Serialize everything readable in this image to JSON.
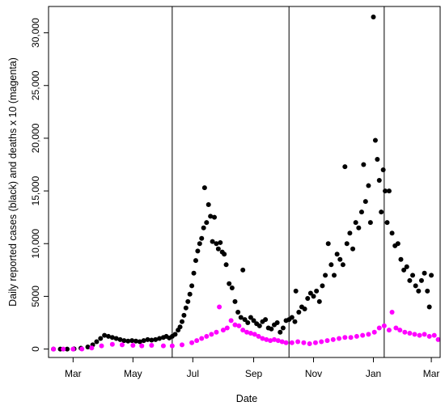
{
  "chart_data": {
    "type": "scatter",
    "xlabel": "Date",
    "ylabel": "Daily reported cases (black) and deaths x 10 (magenta)",
    "xlim": [
      "2020-02-05",
      "2021-03-10"
    ],
    "ylim": [
      -800,
      32500
    ],
    "x_ticks": [
      {
        "date": "2020-03-01",
        "label": "Mar"
      },
      {
        "date": "2020-05-01",
        "label": "May"
      },
      {
        "date": "2020-07-01",
        "label": "Jul"
      },
      {
        "date": "2020-09-01",
        "label": "Sep"
      },
      {
        "date": "2020-11-01",
        "label": "Nov"
      },
      {
        "date": "2021-01-01",
        "label": "Jan"
      },
      {
        "date": "2021-03-01",
        "label": "Mar"
      }
    ],
    "y_ticks": [
      {
        "value": 0,
        "label": "0"
      },
      {
        "value": 5000,
        "label": "5000"
      },
      {
        "value": 10000,
        "label": "10,000"
      },
      {
        "value": 15000,
        "label": "15,000"
      },
      {
        "value": 20000,
        "label": "20,000"
      },
      {
        "value": 25000,
        "label": "25,000"
      },
      {
        "value": 30000,
        "label": "30,000"
      }
    ],
    "vertical_lines": [
      "2020-06-10",
      "2020-10-07",
      "2021-01-12"
    ],
    "grid": false,
    "series": [
      {
        "color": "#000000",
        "points": [
          [
            "2020-02-10",
            0
          ],
          [
            "2020-02-17",
            0
          ],
          [
            "2020-02-24",
            0
          ],
          [
            "2020-03-02",
            20
          ],
          [
            "2020-03-09",
            80
          ],
          [
            "2020-03-16",
            200
          ],
          [
            "2020-03-21",
            400
          ],
          [
            "2020-03-25",
            700
          ],
          [
            "2020-03-29",
            1000
          ],
          [
            "2020-04-02",
            1300
          ],
          [
            "2020-04-06",
            1200
          ],
          [
            "2020-04-10",
            1100
          ],
          [
            "2020-04-14",
            1000
          ],
          [
            "2020-04-18",
            900
          ],
          [
            "2020-04-22",
            800
          ],
          [
            "2020-04-26",
            750
          ],
          [
            "2020-04-30",
            800
          ],
          [
            "2020-05-04",
            750
          ],
          [
            "2020-05-08",
            700
          ],
          [
            "2020-05-12",
            800
          ],
          [
            "2020-05-16",
            900
          ],
          [
            "2020-05-20",
            850
          ],
          [
            "2020-05-24",
            900
          ],
          [
            "2020-05-28",
            1000
          ],
          [
            "2020-06-01",
            1100
          ],
          [
            "2020-06-04",
            1200
          ],
          [
            "2020-06-07",
            1050
          ],
          [
            "2020-06-10",
            1200
          ],
          [
            "2020-06-13",
            1400
          ],
          [
            "2020-06-16",
            1800
          ],
          [
            "2020-06-18",
            2100
          ],
          [
            "2020-06-20",
            2600
          ],
          [
            "2020-06-22",
            3200
          ],
          [
            "2020-06-24",
            3900
          ],
          [
            "2020-06-26",
            4500
          ],
          [
            "2020-06-28",
            5200
          ],
          [
            "2020-06-30",
            6000
          ],
          [
            "2020-07-02",
            7200
          ],
          [
            "2020-07-04",
            8400
          ],
          [
            "2020-07-06",
            9300
          ],
          [
            "2020-07-08",
            10000
          ],
          [
            "2020-07-10",
            10500
          ],
          [
            "2020-07-12",
            11500
          ],
          [
            "2020-07-13",
            15300
          ],
          [
            "2020-07-15",
            12000
          ],
          [
            "2020-07-17",
            13700
          ],
          [
            "2020-07-19",
            12600
          ],
          [
            "2020-07-21",
            10200
          ],
          [
            "2020-07-23",
            12500
          ],
          [
            "2020-07-25",
            10000
          ],
          [
            "2020-07-27",
            9500
          ],
          [
            "2020-07-29",
            10100
          ],
          [
            "2020-07-31",
            9200
          ],
          [
            "2020-08-02",
            9000
          ],
          [
            "2020-08-04",
            8000
          ],
          [
            "2020-08-07",
            6200
          ],
          [
            "2020-08-10",
            5800
          ],
          [
            "2020-08-13",
            4500
          ],
          [
            "2020-08-16",
            3500
          ],
          [
            "2020-08-19",
            3000
          ],
          [
            "2020-08-21",
            7500
          ],
          [
            "2020-08-23",
            2800
          ],
          [
            "2020-08-26",
            2500
          ],
          [
            "2020-08-29",
            3000
          ],
          [
            "2020-09-01",
            2700
          ],
          [
            "2020-09-04",
            2400
          ],
          [
            "2020-09-07",
            2200
          ],
          [
            "2020-09-10",
            2600
          ],
          [
            "2020-09-13",
            2800
          ],
          [
            "2020-09-16",
            2000
          ],
          [
            "2020-09-19",
            1900
          ],
          [
            "2020-09-22",
            2300
          ],
          [
            "2020-09-25",
            2500
          ],
          [
            "2020-09-28",
            1600
          ],
          [
            "2020-10-01",
            2000
          ],
          [
            "2020-10-04",
            2700
          ],
          [
            "2020-10-07",
            2800
          ],
          [
            "2020-10-10",
            3000
          ],
          [
            "2020-10-13",
            2600
          ],
          [
            "2020-10-14",
            5500
          ],
          [
            "2020-10-17",
            3500
          ],
          [
            "2020-10-20",
            4000
          ],
          [
            "2020-10-23",
            3800
          ],
          [
            "2020-10-26",
            4800
          ],
          [
            "2020-10-29",
            5300
          ],
          [
            "2020-11-01",
            5000
          ],
          [
            "2020-11-04",
            5500
          ],
          [
            "2020-11-07",
            4500
          ],
          [
            "2020-11-10",
            6000
          ],
          [
            "2020-11-13",
            7000
          ],
          [
            "2020-11-16",
            10000
          ],
          [
            "2020-11-19",
            8000
          ],
          [
            "2020-11-22",
            7000
          ],
          [
            "2020-11-25",
            9000
          ],
          [
            "2020-11-28",
            8500
          ],
          [
            "2020-12-01",
            8000
          ],
          [
            "2020-12-03",
            17300
          ],
          [
            "2020-12-05",
            10000
          ],
          [
            "2020-12-08",
            11000
          ],
          [
            "2020-12-11",
            9500
          ],
          [
            "2020-12-14",
            12000
          ],
          [
            "2020-12-17",
            11500
          ],
          [
            "2020-12-20",
            13000
          ],
          [
            "2020-12-22",
            17500
          ],
          [
            "2020-12-24",
            14000
          ],
          [
            "2020-12-27",
            15500
          ],
          [
            "2020-12-29",
            12000
          ],
          [
            "2021-01-01",
            31500
          ],
          [
            "2021-01-03",
            19800
          ],
          [
            "2021-01-05",
            18000
          ],
          [
            "2021-01-07",
            16000
          ],
          [
            "2021-01-09",
            13000
          ],
          [
            "2021-01-11",
            17000
          ],
          [
            "2021-01-13",
            15000
          ],
          [
            "2021-01-15",
            12000
          ],
          [
            "2021-01-17",
            15000
          ],
          [
            "2021-01-20",
            11000
          ],
          [
            "2021-01-23",
            9800
          ],
          [
            "2021-01-26",
            10000
          ],
          [
            "2021-01-29",
            8500
          ],
          [
            "2021-02-01",
            7500
          ],
          [
            "2021-02-04",
            7800
          ],
          [
            "2021-02-07",
            6500
          ],
          [
            "2021-02-10",
            7000
          ],
          [
            "2021-02-13",
            6000
          ],
          [
            "2021-02-16",
            5500
          ],
          [
            "2021-02-19",
            6500
          ],
          [
            "2021-02-22",
            7200
          ],
          [
            "2021-02-25",
            5500
          ],
          [
            "2021-02-27",
            4000
          ],
          [
            "2021-03-01",
            7000
          ]
        ]
      },
      {
        "color": "#ff00ff",
        "points": [
          [
            "2020-02-10",
            0
          ],
          [
            "2020-02-20",
            0
          ],
          [
            "2020-03-01",
            0
          ],
          [
            "2020-03-10",
            10
          ],
          [
            "2020-03-20",
            100
          ],
          [
            "2020-03-30",
            300
          ],
          [
            "2020-04-10",
            450
          ],
          [
            "2020-04-20",
            400
          ],
          [
            "2020-05-01",
            350
          ],
          [
            "2020-05-10",
            300
          ],
          [
            "2020-05-20",
            350
          ],
          [
            "2020-06-01",
            300
          ],
          [
            "2020-06-10",
            300
          ],
          [
            "2020-06-20",
            400
          ],
          [
            "2020-06-30",
            600
          ],
          [
            "2020-07-05",
            800
          ],
          [
            "2020-07-10",
            1000
          ],
          [
            "2020-07-15",
            1200
          ],
          [
            "2020-07-20",
            1400
          ],
          [
            "2020-07-25",
            1600
          ],
          [
            "2020-07-28",
            4000
          ],
          [
            "2020-08-01",
            1800
          ],
          [
            "2020-08-05",
            2000
          ],
          [
            "2020-08-09",
            2700
          ],
          [
            "2020-08-13",
            2300
          ],
          [
            "2020-08-17",
            2200
          ],
          [
            "2020-08-21",
            1800
          ],
          [
            "2020-08-25",
            1600
          ],
          [
            "2020-08-29",
            1500
          ],
          [
            "2020-09-02",
            1400
          ],
          [
            "2020-09-06",
            1200
          ],
          [
            "2020-09-10",
            1000
          ],
          [
            "2020-09-14",
            900
          ],
          [
            "2020-09-18",
            800
          ],
          [
            "2020-09-22",
            900
          ],
          [
            "2020-09-26",
            800
          ],
          [
            "2020-09-30",
            700
          ],
          [
            "2020-10-04",
            600
          ],
          [
            "2020-10-10",
            600
          ],
          [
            "2020-10-16",
            700
          ],
          [
            "2020-10-22",
            600
          ],
          [
            "2020-10-28",
            500
          ],
          [
            "2020-11-03",
            600
          ],
          [
            "2020-11-09",
            700
          ],
          [
            "2020-11-15",
            800
          ],
          [
            "2020-11-21",
            900
          ],
          [
            "2020-11-27",
            1000
          ],
          [
            "2020-12-03",
            1100
          ],
          [
            "2020-12-09",
            1100
          ],
          [
            "2020-12-15",
            1200
          ],
          [
            "2020-12-21",
            1300
          ],
          [
            "2020-12-27",
            1400
          ],
          [
            "2021-01-02",
            1600
          ],
          [
            "2021-01-07",
            2000
          ],
          [
            "2021-01-12",
            2200
          ],
          [
            "2021-01-17",
            1800
          ],
          [
            "2021-01-20",
            3500
          ],
          [
            "2021-01-24",
            2000
          ],
          [
            "2021-01-28",
            1800
          ],
          [
            "2021-02-02",
            1600
          ],
          [
            "2021-02-07",
            1500
          ],
          [
            "2021-02-12",
            1400
          ],
          [
            "2021-02-17",
            1300
          ],
          [
            "2021-02-22",
            1400
          ],
          [
            "2021-02-27",
            1200
          ],
          [
            "2021-03-04",
            1300
          ],
          [
            "2021-03-08",
            900
          ]
        ]
      }
    ]
  }
}
